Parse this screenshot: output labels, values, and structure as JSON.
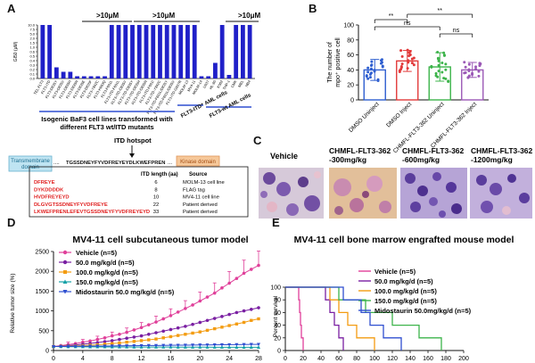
{
  "panels": {
    "A": {
      "letter": "A",
      "bar_data": {
        "ylabel": "GI50 (µM)",
        "yticks": [
          "0.0",
          "0.1",
          "0.2",
          "0.3",
          "0.4",
          "0.5",
          "0.6",
          "1.0",
          "1.5",
          "2.0",
          "5.0",
          "7.5",
          "10.0"
        ],
        "categories": [
          "TEL-FLT3",
          "FLT3-ITD",
          "FLT3-D835Y",
          "FLT3-D835V",
          "FLT3-D835H",
          "FLT3-D835N",
          "FLT3-D835E",
          "FLT3-D835F",
          "FLT3-Y842C",
          "FLT3-K663Q",
          "FLT3-F691L",
          "FLT3-ITD-F691L",
          "FLT3-ITD-D835V",
          "FLT3-ITD-D835Y",
          "FLT3-ITD-D835H",
          "FLT3-ITD-D835N",
          "FLT3-ITD-F691I",
          "FLT3-ITD-Y842C",
          "FLT3-ITD-F691L/D835Y",
          "FLT3-ITD-F691L/D835V",
          "FLT3-ITD-G697R",
          "MOLM-13",
          "MV4-11",
          "MOLM-14",
          "U937",
          "HL-60",
          "K562",
          "THP-1",
          "CMK",
          "MEL",
          "NB4"
        ],
        "values": [
          10,
          10,
          0.25,
          0.15,
          0.15,
          0.05,
          0.05,
          0.05,
          0.05,
          0.05,
          10,
          10,
          10,
          10,
          10,
          10,
          10,
          10,
          10,
          10,
          10,
          10,
          10,
          0.05,
          0.05,
          0.35,
          10,
          0.08,
          10,
          10,
          10
        ],
        "annotations": [
          ">10μM",
          ">10μM",
          ">10μM"
        ]
      },
      "group_labels": [
        "Isogenic BaF3 cell lines transformed with",
        "different FLT3 wt/ITD mutants",
        "FLT3-ITD⁺ AML cells",
        "FLT3-wt AML cells"
      ],
      "itd_hotspot": "ITD hotspot",
      "transmembrane": [
        "Transmembrane",
        "domain"
      ],
      "sequence": "TGSSDNEYFYVDFREYEYDLKWEFPREN",
      "kinase_domain": "Kinase domain",
      "table": {
        "headers": [
          "ITD length (aa)",
          "Source"
        ],
        "rows": [
          {
            "seq": "DFREYE",
            "len": "6",
            "source": "MOLM-13 cell line"
          },
          {
            "seq": "DYKDDDDK",
            "len": "8",
            "source": "FLAG tag"
          },
          {
            "seq": "HVDFREYEYD",
            "len": "10",
            "source": "MV4-11 cell line"
          },
          {
            "seq": "DLGVGTSSDNEYFYVDFREYE",
            "len": "22",
            "source": "Patient derived"
          },
          {
            "seq": "LKWEFPRENLEFEVTGSSDNEYFYVDFREYEYD",
            "len": "33",
            "source": "Patient derived"
          }
        ]
      }
    },
    "B": {
      "letter": "B",
      "chart_data": {
        "type": "scatter",
        "ylabel_lines": [
          "The number of",
          "mpo⁺ positive cell"
        ],
        "ylim": [
          0,
          100
        ],
        "yticks": [
          "0",
          "20",
          "40",
          "60",
          "80",
          "100"
        ],
        "groups": [
          {
            "name": "DMSO Uninject",
            "mean": 40,
            "sd": 14,
            "color": "#2f5fd0"
          },
          {
            "name": "DMSO Inject",
            "mean": 52,
            "sd": 14,
            "color": "#e23a3a"
          },
          {
            "name": "CHMFL-FLT3-362 Uninject",
            "mean": 44,
            "sd": 19,
            "color": "#3db44b"
          },
          {
            "name": "CHMFL-FLT3-362 Inject",
            "mean": 40,
            "sd": 10,
            "color": "#9b59b6"
          }
        ],
        "significance": [
          "**",
          "**",
          "ns",
          "ns"
        ]
      }
    },
    "C": {
      "letter": "C",
      "labels": [
        "Vehicle",
        "CHMFL-FLT3-362",
        "-300mg/kg",
        "CHMFL-FLT3-362",
        "-600mg/kg",
        "CHMFL-FLT3-362",
        "-1200mg/kg"
      ]
    },
    "D": {
      "letter": "D",
      "chart_data": {
        "type": "line",
        "title": "MV4-11 cell subcutaneous tumor model",
        "ylabel": "Relative tumor size (%)",
        "x": [
          0,
          1,
          2,
          3,
          4,
          5,
          6,
          7,
          8,
          9,
          10,
          11,
          12,
          13,
          14,
          15,
          16,
          17,
          18,
          19,
          20,
          21,
          22,
          23,
          24,
          25,
          26,
          27,
          28
        ],
        "xticks": [
          "0",
          "4",
          "8",
          "12",
          "16",
          "20",
          "24",
          "28"
        ],
        "ylim": [
          0,
          2500
        ],
        "yticks": [
          "0",
          "500",
          "1000",
          "1500",
          "2000",
          "2500"
        ],
        "series": [
          {
            "name": "Vehicle (n=5)",
            "color": "#e0409a",
            "marker": "circle",
            "values": [
              100,
              125,
              150,
              175,
              210,
              240,
              280,
              320,
              370,
              410,
              460,
              520,
              580,
              650,
              720,
              800,
              880,
              970,
              1060,
              1150,
              1250,
              1350,
              1450,
              1580,
              1700,
              1820,
              1950,
              2050,
              2150
            ]
          },
          {
            "name": "50.0 mg/kg/d (n=5)",
            "color": "#7a1fa2",
            "marker": "circle",
            "values": [
              100,
              110,
              125,
              140,
              160,
              180,
              200,
              225,
              250,
              280,
              310,
              340,
              370,
              410,
              450,
              490,
              530,
              570,
              610,
              660,
              710,
              760,
              810,
              860,
              910,
              960,
              1000,
              1040,
              1080
            ]
          },
          {
            "name": "100.0 mg/kg/d (n=5)",
            "color": "#f39c12",
            "marker": "square",
            "values": [
              100,
              105,
              110,
              115,
              125,
              135,
              145,
              160,
              175,
              190,
              210,
              230,
              250,
              270,
              290,
              320,
              350,
              380,
              410,
              440,
              470,
              510,
              550,
              590,
              630,
              670,
              710,
              760,
              800
            ]
          },
          {
            "name": "150.0 mg/kg/d (n=5)",
            "color": "#17a2a8",
            "marker": "triangle",
            "values": [
              100,
              98,
              96,
              95,
              94,
              93,
              92,
              91,
              90,
              90,
              89,
              88,
              88,
              87,
              87,
              86,
              86,
              85,
              85,
              84,
              84,
              84,
              83,
              83,
              83,
              82,
              82,
              82,
              82
            ]
          },
          {
            "name": "Midostaurin 50.0 mg/kg/d (n=5)",
            "color": "#2f4fd0",
            "marker": "triangle-down",
            "values": [
              100,
              102,
              104,
              106,
              108,
              110,
              112,
              114,
              116,
              118,
              120,
              122,
              124,
              126,
              128,
              130,
              132,
              134,
              136,
              138,
              140,
              142,
              144,
              146,
              148,
              150,
              152,
              154,
              156
            ]
          }
        ]
      }
    },
    "E": {
      "letter": "E",
      "chart_data": {
        "type": "line",
        "title": "MV4-11 cell bone marrow engrafted mouse model",
        "ylabel": "Percent survival",
        "xlim": [
          0,
          200
        ],
        "xticks": [
          "0",
          "20",
          "40",
          "60",
          "80",
          "100",
          "120",
          "140",
          "160",
          "180",
          "200"
        ],
        "ylim": [
          0,
          100
        ],
        "yticks": [
          "0",
          "20",
          "40",
          "60",
          "80",
          "100"
        ],
        "series": [
          {
            "name": "Vehicle (n=5)",
            "color": "#e0409a",
            "steps": [
              [
                0,
                100
              ],
              [
                15,
                80
              ],
              [
                16,
                60
              ],
              [
                17,
                40
              ],
              [
                18,
                20
              ],
              [
                20,
                0
              ]
            ]
          },
          {
            "name": "50.0 mg/kg/d (n=5)",
            "color": "#7a1fa2",
            "steps": [
              [
                0,
                100
              ],
              [
                45,
                80
              ],
              [
                50,
                60
              ],
              [
                55,
                40
              ],
              [
                60,
                20
              ],
              [
                65,
                0
              ]
            ]
          },
          {
            "name": "100.0 mg/kg/d (n=5)",
            "color": "#f39c12",
            "steps": [
              [
                0,
                100
              ],
              [
                50,
                80
              ],
              [
                60,
                60
              ],
              [
                70,
                40
              ],
              [
                80,
                20
              ],
              [
                100,
                0
              ]
            ]
          },
          {
            "name": "150.0 mg/kg/d (n=5)",
            "color": "#3db44b",
            "steps": [
              [
                0,
                100
              ],
              [
                60,
                80
              ],
              [
                90,
                60
              ],
              [
                120,
                40
              ],
              [
                150,
                20
              ],
              [
                175,
                0
              ]
            ]
          },
          {
            "name": "Midostaurin 50.0mg/kg/d (n=5)",
            "color": "#2f4fd0",
            "steps": [
              [
                0,
                100
              ],
              [
                65,
                80
              ],
              [
                85,
                60
              ],
              [
                95,
                40
              ],
              [
                110,
                20
              ],
              [
                130,
                0
              ]
            ]
          }
        ]
      }
    }
  }
}
